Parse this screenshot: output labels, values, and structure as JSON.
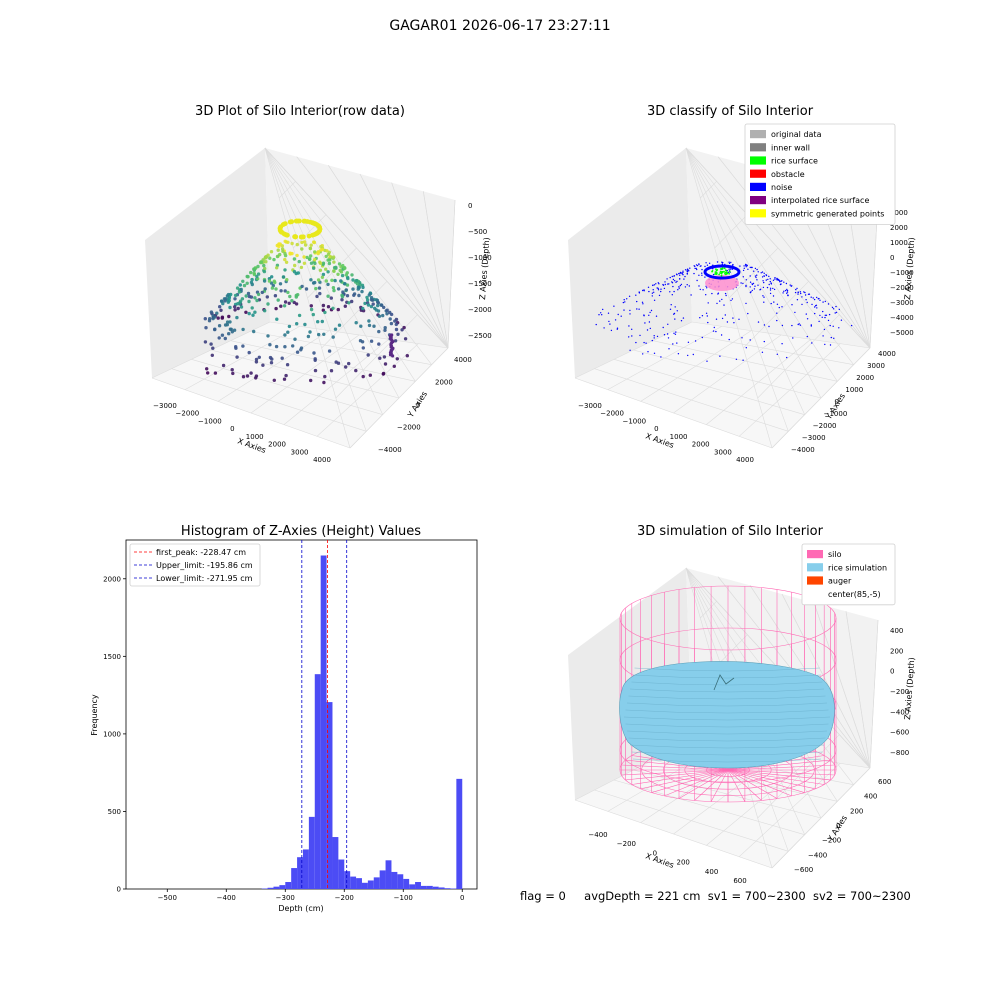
{
  "suptitle": "GAGAR01 2026-06-17 23:27:11",
  "footer": {
    "flag": "flag = 0",
    "avg": "avgDepth = 221 cm",
    "sv1": "sv1 = 700~2300",
    "sv2": "sv2 = 700~2300"
  },
  "colors": {
    "hist_bar": "#4c4cf5",
    "peak_line": "#ff0000",
    "limit_line": "#0000cc",
    "silo": "#ff69b4",
    "rice_simulation": "#87ceeb",
    "auger": "#ff4500"
  },
  "chart_data": [
    {
      "id": "raw",
      "type": "scatter",
      "title": "3D Plot of Silo Interior(row data)",
      "xlabel": "X Axies",
      "ylabel": "Y Axies",
      "zlabel": "Z Axies (Depth)",
      "xticks": [
        "−3000",
        "−2000",
        "−1000",
        "0",
        "1000",
        "2000",
        "3000",
        "4000"
      ],
      "yticks": [
        "−4000",
        "−2000",
        "0",
        "2000",
        "4000"
      ],
      "zticks": [
        "−2500",
        "−2000",
        "−1500",
        "−1000",
        "−500",
        "0"
      ]
    },
    {
      "id": "classify",
      "type": "scatter",
      "title": "3D classify of Silo Interior",
      "xlabel": "X Axies",
      "ylabel": "Y Axies",
      "zlabel": "Z Axies (Depth)",
      "xticks": [
        "−3000",
        "−2000",
        "−1000",
        "0",
        "1000",
        "2000",
        "3000",
        "4000"
      ],
      "yticks": [
        "−4000",
        "−3000",
        "−2000",
        "−1000",
        "0",
        "1000",
        "2000",
        "3000",
        "4000"
      ],
      "zticks": [
        "−5000",
        "−4000",
        "−3000",
        "−2000",
        "−1000",
        "0",
        "1000",
        "2000",
        "3000"
      ],
      "legend": [
        {
          "label": "original data",
          "color": "#b0b0b0"
        },
        {
          "label": "inner wall",
          "color": "#808080"
        },
        {
          "label": "rice surface",
          "color": "#00ff00"
        },
        {
          "label": "obstacle",
          "color": "#ff0000"
        },
        {
          "label": "noise",
          "color": "#0000ff"
        },
        {
          "label": "interpolated rice surface",
          "color": "#800080"
        },
        {
          "label": "symmetric generated points",
          "color": "#ffff00"
        }
      ],
      "legend_position": "top-right"
    },
    {
      "id": "hist",
      "type": "bar",
      "title": "Histogram of Z-Axies (Height) Values",
      "xlabel": "Depth (cm)",
      "ylabel": "Frequency",
      "xlim": [
        -570,
        25
      ],
      "ylim": [
        0,
        2250
      ],
      "xticks": [
        -500,
        -400,
        -300,
        -200,
        -100,
        0
      ],
      "yticks": [
        0,
        500,
        1000,
        1500,
        2000
      ],
      "bin_width": 10,
      "bins": [
        {
          "x": -340,
          "v": 3
        },
        {
          "x": -330,
          "v": 8
        },
        {
          "x": -320,
          "v": 15
        },
        {
          "x": -310,
          "v": 25
        },
        {
          "x": -300,
          "v": 45
        },
        {
          "x": -290,
          "v": 135
        },
        {
          "x": -280,
          "v": 205
        },
        {
          "x": -270,
          "v": 255
        },
        {
          "x": -260,
          "v": 465
        },
        {
          "x": -250,
          "v": 1385
        },
        {
          "x": -240,
          "v": 2150
        },
        {
          "x": -230,
          "v": 1205
        },
        {
          "x": -220,
          "v": 335
        },
        {
          "x": -210,
          "v": 190
        },
        {
          "x": -200,
          "v": 115
        },
        {
          "x": -190,
          "v": 80
        },
        {
          "x": -180,
          "v": 70
        },
        {
          "x": -170,
          "v": 40
        },
        {
          "x": -160,
          "v": 55
        },
        {
          "x": -150,
          "v": 75
        },
        {
          "x": -140,
          "v": 120
        },
        {
          "x": -130,
          "v": 185
        },
        {
          "x": -120,
          "v": 110
        },
        {
          "x": -110,
          "v": 95
        },
        {
          "x": -100,
          "v": 65
        },
        {
          "x": -90,
          "v": 30
        },
        {
          "x": -80,
          "v": 45
        },
        {
          "x": -70,
          "v": 20
        },
        {
          "x": -60,
          "v": 20
        },
        {
          "x": -50,
          "v": 15
        },
        {
          "x": -40,
          "v": 10
        },
        {
          "x": -30,
          "v": 5
        },
        {
          "x": -20,
          "v": 3
        },
        {
          "x": -10,
          "v": 710
        }
      ],
      "lines": [
        {
          "label": "first_peak: -228.47 cm",
          "x": -228.47,
          "color": "#ff0000"
        },
        {
          "label": "Upper_limit: -195.86 cm",
          "x": -195.86,
          "color": "#0000cc"
        },
        {
          "label": "Lower_limit: -271.95 cm",
          "x": -271.95,
          "color": "#0000cc"
        }
      ],
      "legend_position": "top-left"
    },
    {
      "id": "sim",
      "type": "area",
      "title": "3D simulation of Silo Interior",
      "xlabel": "X Axies",
      "ylabel": "Y Axies",
      "zlabel": "Z Axies (Depth)",
      "xticks": [
        "−400",
        "−200",
        "0",
        "200",
        "400",
        "600"
      ],
      "yticks": [
        "−600",
        "−400",
        "−200",
        "0",
        "200",
        "400",
        "600"
      ],
      "zticks": [
        "−800",
        "−600",
        "−400",
        "−200",
        "0",
        "200",
        "400"
      ],
      "legend": [
        {
          "label": "silo",
          "color": "#ff69b4"
        },
        {
          "label": "rice simulation",
          "color": "#87ceeb"
        },
        {
          "label": "auger",
          "color": "#ff4500"
        },
        {
          "label": "center(85,-5)",
          "color": "#ffffff"
        }
      ],
      "legend_position": "top-right"
    }
  ]
}
